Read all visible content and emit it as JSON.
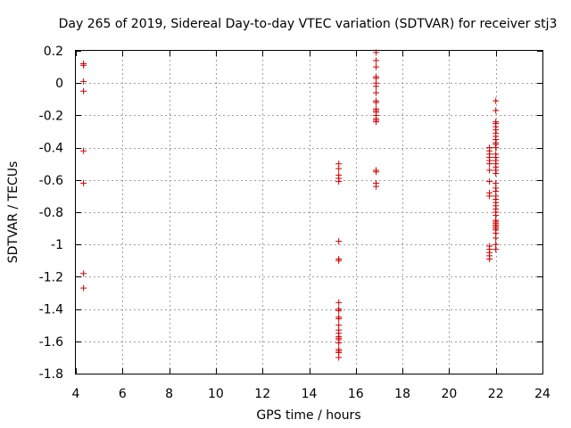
{
  "chart_data": {
    "type": "scatter",
    "title": "Day 265 of 2019, Sidereal Day-to-day VTEC variation (SDTVAR) for receiver stj3",
    "xlabel": "GPS time / hours",
    "ylabel": "SDTVAR / TECUs",
    "xlim": [
      4,
      24
    ],
    "ylim": [
      -1.8,
      0.2
    ],
    "xticks": [
      4,
      6,
      8,
      10,
      12,
      14,
      16,
      18,
      20,
      22,
      24
    ],
    "yticks": [
      0.2,
      0,
      -0.2,
      -0.4,
      -0.6,
      -0.8,
      -1,
      -1.2,
      -1.4,
      -1.6,
      -1.8
    ],
    "xtick_labels": [
      "4",
      "6",
      "8",
      "10",
      "12",
      "14",
      "16",
      "18",
      "20",
      "22",
      "24"
    ],
    "ytick_labels": [
      "0.2",
      "0",
      "-0.2",
      "-0.4",
      "-0.6",
      "-0.8",
      "-1",
      "-1.2",
      "-1.4",
      "-1.6",
      "-1.8"
    ],
    "grid": true,
    "marker": "+",
    "color": "#cc0000",
    "x": [
      4.33,
      4.33,
      4.33,
      4.33,
      4.33,
      4.33,
      4.33,
      4.33,
      15.27,
      15.27,
      15.27,
      15.27,
      15.27,
      15.27,
      15.27,
      15.27,
      15.27,
      15.27,
      15.27,
      15.27,
      15.27,
      15.27,
      15.27,
      15.27,
      15.27,
      15.27,
      15.27,
      15.27,
      15.27,
      15.27,
      15.27,
      15.27,
      16.87,
      16.87,
      16.87,
      16.87,
      16.87,
      16.87,
      16.87,
      16.87,
      16.87,
      16.87,
      16.87,
      16.87,
      16.87,
      16.87,
      16.87,
      16.87,
      16.87,
      16.87,
      16.87,
      16.87,
      16.87,
      21.73,
      21.73,
      21.73,
      21.73,
      21.73,
      21.73,
      21.73,
      21.73,
      21.73,
      21.73,
      21.73,
      21.73,
      21.73,
      21.73,
      21.73,
      22.0,
      22.0,
      22.0,
      22.0,
      22.0,
      22.0,
      22.0,
      22.0,
      22.0,
      22.0,
      22.0,
      22.0,
      22.0,
      22.0,
      22.0,
      22.0,
      22.0,
      22.0,
      22.0,
      22.0,
      22.0,
      22.0,
      22.0,
      22.0,
      22.0,
      22.0,
      22.0,
      22.0,
      22.0,
      22.0,
      22.0,
      22.0,
      22.0,
      22.0,
      22.0,
      22.0,
      22.0,
      22.0,
      22.0,
      22.0
    ],
    "y": [
      0.11,
      0.12,
      0.01,
      -0.05,
      -0.42,
      -0.62,
      -1.18,
      -1.27,
      -0.5,
      -0.53,
      -0.57,
      -0.59,
      -0.61,
      -0.98,
      -1.09,
      -1.1,
      -1.36,
      -1.4,
      -1.41,
      -1.45,
      -1.46,
      -1.5,
      -1.53,
      -1.55,
      -1.57,
      -1.58,
      -1.59,
      -1.61,
      -1.65,
      -1.66,
      -1.67,
      -1.7,
      0.19,
      0.14,
      0.1,
      0.04,
      0.03,
      0.0,
      -0.02,
      -0.06,
      -0.11,
      -0.12,
      -0.16,
      -0.17,
      -0.18,
      -0.2,
      -0.22,
      -0.23,
      -0.24,
      -0.54,
      -0.55,
      -0.62,
      -0.64,
      -0.4,
      -0.42,
      -0.44,
      -0.46,
      -0.48,
      -0.5,
      -0.54,
      -0.61,
      -0.68,
      -0.7,
      -1.01,
      -1.03,
      -1.05,
      -1.07,
      -1.09,
      -0.11,
      -0.17,
      -0.24,
      -0.25,
      -0.27,
      -0.29,
      -0.31,
      -0.33,
      -0.35,
      -0.37,
      -0.38,
      -0.4,
      -0.44,
      -0.46,
      -0.48,
      -0.5,
      -0.52,
      -0.54,
      -0.56,
      -0.62,
      -0.65,
      -0.67,
      -0.7,
      -0.72,
      -0.74,
      -0.76,
      -0.78,
      -0.8,
      -0.82,
      -0.86,
      -0.87,
      -0.88,
      -0.89,
      -0.9,
      -0.91,
      -0.93,
      -0.96,
      -1.0,
      -1.03,
      -0.85
    ]
  }
}
